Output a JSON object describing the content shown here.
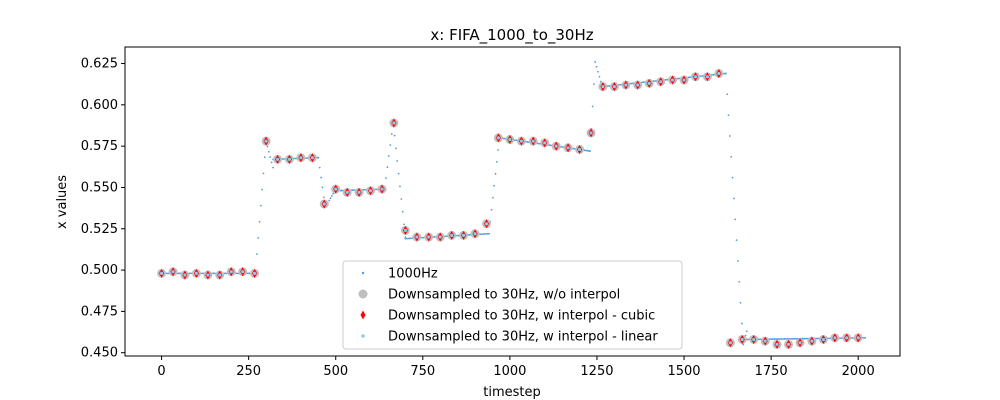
{
  "chart_data": {
    "type": "scatter",
    "title": "x: FIFA_1000_to_30Hz",
    "xlabel": "timestep",
    "ylabel": "x values",
    "xlim": [
      -105,
      2120
    ],
    "ylim": [
      0.448,
      0.635
    ],
    "xticks": [
      0,
      250,
      500,
      750,
      1000,
      1250,
      1500,
      1750,
      2000
    ],
    "xtick_labels": [
      "0",
      "250",
      "500",
      "750",
      "1000",
      "1250",
      "1500",
      "1750",
      "2000"
    ],
    "yticks": [
      0.45,
      0.475,
      0.5,
      0.525,
      0.55,
      0.575,
      0.6,
      0.625
    ],
    "ytick_labels": [
      "0.450",
      "0.475",
      "0.500",
      "0.525",
      "0.550",
      "0.575",
      "0.600",
      "0.625"
    ],
    "grid": false,
    "legend_position": "lower-center",
    "colors": {
      "1000hz": "#5a9be0",
      "no_interp": "#bfbfbf",
      "cubic": "#ff0000",
      "linear": "#87cefa"
    },
    "segments_1000hz": [
      {
        "x": [
          0,
          265
        ],
        "y": [
          0.498,
          0.498
        ]
      },
      {
        "x": [
          270,
          300
        ],
        "y": [
          0.5,
          0.578
        ]
      },
      {
        "x": [
          300,
          320
        ],
        "y": [
          0.578,
          0.562
        ]
      },
      {
        "x": [
          320,
          450
        ],
        "y": [
          0.567,
          0.568
        ]
      },
      {
        "x": [
          450,
          470
        ],
        "y": [
          0.568,
          0.538
        ]
      },
      {
        "x": [
          470,
          500
        ],
        "y": [
          0.538,
          0.549
        ]
      },
      {
        "x": [
          500,
          640
        ],
        "y": [
          0.548,
          0.549
        ]
      },
      {
        "x": [
          640,
          665
        ],
        "y": [
          0.549,
          0.589
        ]
      },
      {
        "x": [
          665,
          700
        ],
        "y": [
          0.589,
          0.52
        ]
      },
      {
        "x": [
          700,
          940
        ],
        "y": [
          0.519,
          0.522
        ]
      },
      {
        "x": [
          940,
          970
        ],
        "y": [
          0.522,
          0.58
        ]
      },
      {
        "x": [
          970,
          1230
        ],
        "y": [
          0.58,
          0.572
        ]
      },
      {
        "x": [
          1230,
          1245
        ],
        "y": [
          0.572,
          0.626
        ]
      },
      {
        "x": [
          1245,
          1265
        ],
        "y": [
          0.626,
          0.611
        ]
      },
      {
        "x": [
          1265,
          1620
        ],
        "y": [
          0.611,
          0.619
        ]
      },
      {
        "x": [
          1620,
          1670
        ],
        "y": [
          0.619,
          0.455
        ]
      },
      {
        "x": [
          1670,
          1680
        ],
        "y": [
          0.455,
          0.463
        ]
      },
      {
        "x": [
          1680,
          2020
        ],
        "y": [
          0.458,
          0.459
        ]
      }
    ],
    "series": [
      {
        "name": "1000Hz",
        "style": "dot"
      },
      {
        "name": "Downsampled to 30Hz, w/o interpol",
        "style": "circle",
        "x": [
          0,
          33,
          67,
          100,
          133,
          167,
          200,
          233,
          267,
          300,
          333,
          367,
          400,
          433,
          467,
          500,
          533,
          567,
          600,
          633,
          667,
          700,
          733,
          767,
          800,
          833,
          867,
          900,
          933,
          967,
          1000,
          1033,
          1067,
          1100,
          1133,
          1167,
          1200,
          1233,
          1267,
          1300,
          1333,
          1367,
          1400,
          1433,
          1467,
          1500,
          1533,
          1567,
          1600,
          1633,
          1667,
          1700,
          1733,
          1767,
          1800,
          1833,
          1867,
          1900,
          1933,
          1967,
          2000
        ],
        "y": [
          0.498,
          0.499,
          0.497,
          0.498,
          0.497,
          0.497,
          0.499,
          0.499,
          0.498,
          0.578,
          0.567,
          0.567,
          0.568,
          0.568,
          0.54,
          0.549,
          0.547,
          0.547,
          0.548,
          0.549,
          0.589,
          0.524,
          0.52,
          0.52,
          0.52,
          0.521,
          0.521,
          0.522,
          0.528,
          0.58,
          0.579,
          0.578,
          0.578,
          0.577,
          0.575,
          0.574,
          0.573,
          0.583,
          0.611,
          0.611,
          0.612,
          0.612,
          0.613,
          0.614,
          0.615,
          0.615,
          0.617,
          0.617,
          0.619,
          0.456,
          0.458,
          0.458,
          0.457,
          0.455,
          0.455,
          0.456,
          0.457,
          0.458,
          0.459,
          0.459,
          0.459
        ]
      },
      {
        "name": "Downsampled to 30Hz, w interpol - cubic",
        "style": "diamond",
        "x": [
          0,
          33,
          67,
          100,
          133,
          167,
          200,
          233,
          267,
          300,
          333,
          367,
          400,
          433,
          467,
          500,
          533,
          567,
          600,
          633,
          667,
          700,
          733,
          767,
          800,
          833,
          867,
          900,
          933,
          967,
          1000,
          1033,
          1067,
          1100,
          1133,
          1167,
          1200,
          1233,
          1267,
          1300,
          1333,
          1367,
          1400,
          1433,
          1467,
          1500,
          1533,
          1567,
          1600,
          1633,
          1667,
          1700,
          1733,
          1767,
          1800,
          1833,
          1867,
          1900,
          1933,
          1967,
          2000
        ],
        "y": [
          0.498,
          0.499,
          0.497,
          0.498,
          0.497,
          0.497,
          0.499,
          0.499,
          0.498,
          0.578,
          0.567,
          0.567,
          0.568,
          0.568,
          0.54,
          0.549,
          0.547,
          0.547,
          0.548,
          0.549,
          0.589,
          0.524,
          0.52,
          0.52,
          0.52,
          0.521,
          0.521,
          0.522,
          0.528,
          0.58,
          0.579,
          0.578,
          0.578,
          0.577,
          0.575,
          0.574,
          0.573,
          0.583,
          0.611,
          0.611,
          0.612,
          0.612,
          0.613,
          0.614,
          0.615,
          0.615,
          0.617,
          0.617,
          0.619,
          0.456,
          0.458,
          0.458,
          0.457,
          0.455,
          0.455,
          0.456,
          0.457,
          0.458,
          0.459,
          0.459,
          0.459
        ]
      },
      {
        "name": "Downsampled to 30Hz, w interpol - linear",
        "style": "small-dot",
        "x": [
          0,
          33,
          67,
          100,
          133,
          167,
          200,
          233,
          267,
          300,
          333,
          367,
          400,
          433,
          467,
          500,
          533,
          567,
          600,
          633,
          667,
          700,
          733,
          767,
          800,
          833,
          867,
          900,
          933,
          967,
          1000,
          1033,
          1067,
          1100,
          1133,
          1167,
          1200,
          1233,
          1267,
          1300,
          1333,
          1367,
          1400,
          1433,
          1467,
          1500,
          1533,
          1567,
          1600,
          1633,
          1667,
          1700,
          1733,
          1767,
          1800,
          1833,
          1867,
          1900,
          1933,
          1967,
          2000
        ],
        "y": [
          0.498,
          0.499,
          0.497,
          0.498,
          0.497,
          0.497,
          0.499,
          0.499,
          0.498,
          0.578,
          0.567,
          0.567,
          0.568,
          0.568,
          0.54,
          0.549,
          0.547,
          0.547,
          0.548,
          0.549,
          0.589,
          0.524,
          0.52,
          0.52,
          0.52,
          0.521,
          0.521,
          0.522,
          0.528,
          0.58,
          0.579,
          0.578,
          0.578,
          0.577,
          0.575,
          0.574,
          0.573,
          0.583,
          0.611,
          0.611,
          0.612,
          0.612,
          0.613,
          0.614,
          0.615,
          0.615,
          0.617,
          0.617,
          0.619,
          0.456,
          0.458,
          0.458,
          0.457,
          0.455,
          0.455,
          0.456,
          0.457,
          0.458,
          0.459,
          0.459,
          0.459
        ]
      }
    ]
  }
}
